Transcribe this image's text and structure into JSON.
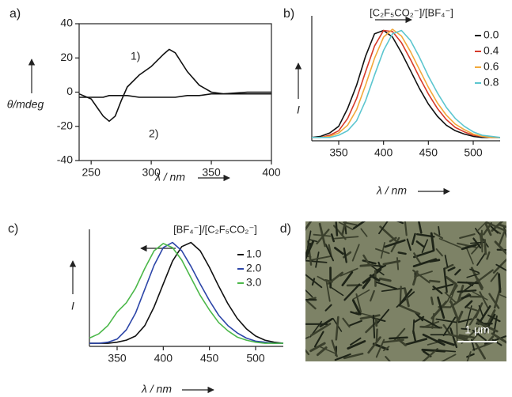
{
  "chart_data": [
    {
      "type": "line",
      "panel_label": "a)",
      "x_label": "λ / nm",
      "y_label": "θ/mdeg",
      "x": [
        240,
        250,
        255,
        260,
        265,
        270,
        275,
        280,
        290,
        300,
        310,
        315,
        320,
        330,
        340,
        350,
        360,
        380,
        400
      ],
      "series": [
        {
          "name": "1)",
          "color": "#111111",
          "values": [
            -1,
            -4,
            -9,
            -14,
            -17,
            -14,
            -5,
            3,
            10,
            15,
            22,
            25,
            23,
            12,
            4,
            0,
            -1,
            -1,
            -1
          ]
        },
        {
          "name": "2)",
          "color": "#111111",
          "values": [
            -3,
            -3,
            -3,
            -3,
            -2,
            -2,
            -2,
            -2,
            -3,
            -3,
            -3,
            -3,
            -3,
            -2,
            -2,
            -1,
            -1,
            0,
            0
          ]
        }
      ],
      "xlim": [
        240,
        400
      ],
      "xticks": [
        250,
        300,
        350,
        400
      ],
      "ylim": [
        -40,
        40
      ],
      "yticks": [
        -40,
        -20,
        0,
        20,
        40
      ],
      "frame": true
    },
    {
      "type": "line",
      "panel_label": "b)",
      "x_label": "λ / nm",
      "y_label": "I",
      "legend_title": "[C₂F₅CO₂⁻]/[BF₄⁻]",
      "legend_arrow": "right",
      "x": [
        320,
        330,
        340,
        350,
        360,
        370,
        380,
        390,
        400,
        410,
        420,
        430,
        440,
        450,
        460,
        470,
        480,
        490,
        500,
        510,
        520,
        530
      ],
      "series": [
        {
          "name": "0.0",
          "color": "#111111",
          "values": [
            0.03,
            0.04,
            0.07,
            0.13,
            0.29,
            0.5,
            0.76,
            0.96,
            0.99,
            0.93,
            0.79,
            0.63,
            0.47,
            0.33,
            0.22,
            0.14,
            0.09,
            0.06,
            0.04,
            0.03,
            0.03,
            0.03
          ]
        },
        {
          "name": "0.4",
          "color": "#d63a2a",
          "values": [
            0.03,
            0.03,
            0.05,
            0.09,
            0.2,
            0.38,
            0.62,
            0.85,
            0.99,
            0.98,
            0.88,
            0.73,
            0.57,
            0.42,
            0.29,
            0.19,
            0.12,
            0.08,
            0.05,
            0.04,
            0.03,
            0.03
          ]
        },
        {
          "name": "0.6",
          "color": "#f2a93b",
          "values": [
            0.03,
            0.03,
            0.04,
            0.07,
            0.14,
            0.28,
            0.5,
            0.74,
            0.93,
            1.0,
            0.94,
            0.8,
            0.64,
            0.48,
            0.34,
            0.23,
            0.15,
            0.1,
            0.06,
            0.04,
            0.03,
            0.03
          ]
        },
        {
          "name": "0.8",
          "color": "#5cc6cf",
          "values": [
            0.03,
            0.03,
            0.03,
            0.05,
            0.09,
            0.18,
            0.36,
            0.59,
            0.81,
            0.96,
            0.99,
            0.9,
            0.75,
            0.58,
            0.43,
            0.3,
            0.2,
            0.13,
            0.08,
            0.05,
            0.04,
            0.03
          ]
        }
      ],
      "xlim": [
        320,
        530
      ],
      "xticks": [
        350,
        400,
        450,
        500
      ],
      "ylim": [
        0,
        1.05
      ],
      "frame": false
    },
    {
      "type": "line",
      "panel_label": "c)",
      "x_label": "λ / nm",
      "y_label": "I",
      "legend_title": "[BF₄⁻]/[C₂F₅CO₂⁻]",
      "legend_arrow": "left",
      "x": [
        320,
        330,
        340,
        350,
        360,
        370,
        380,
        390,
        400,
        410,
        420,
        430,
        440,
        450,
        460,
        470,
        480,
        490,
        500,
        510,
        520,
        530
      ],
      "series": [
        {
          "name": "1.0",
          "color": "#111111",
          "values": [
            0.03,
            0.03,
            0.03,
            0.04,
            0.06,
            0.1,
            0.2,
            0.38,
            0.6,
            0.82,
            0.96,
            1.0,
            0.92,
            0.76,
            0.58,
            0.41,
            0.27,
            0.17,
            0.1,
            0.06,
            0.04,
            0.03
          ]
        },
        {
          "name": "2.0",
          "color": "#2d46a8",
          "values": [
            0.03,
            0.03,
            0.04,
            0.07,
            0.16,
            0.32,
            0.55,
            0.78,
            0.95,
            1.0,
            0.92,
            0.77,
            0.6,
            0.44,
            0.3,
            0.2,
            0.13,
            0.08,
            0.05,
            0.04,
            0.03,
            0.03
          ]
        },
        {
          "name": "3.0",
          "color": "#4cb84a",
          "values": [
            0.08,
            0.12,
            0.2,
            0.33,
            0.42,
            0.56,
            0.75,
            0.92,
            0.99,
            0.95,
            0.83,
            0.66,
            0.49,
            0.35,
            0.23,
            0.15,
            0.09,
            0.06,
            0.04,
            0.03,
            0.03,
            0.03
          ]
        }
      ],
      "xlim": [
        320,
        530
      ],
      "xticks": [
        350,
        400,
        450,
        500
      ],
      "ylim": [
        0,
        1.05
      ],
      "frame": false
    }
  ],
  "image_panel": {
    "panel_label": "d)",
    "scale_label": "1 µm"
  }
}
